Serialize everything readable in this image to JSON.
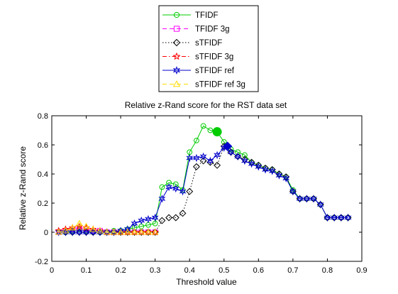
{
  "chart_data": {
    "type": "line",
    "title": "Relative z-Rand score for the RST data set",
    "xlabel": "Threshold value",
    "ylabel": "Relative z-Rand score",
    "xlim": [
      0,
      0.9
    ],
    "ylim": [
      -0.2,
      0.8
    ],
    "xticks": [
      "0",
      "0.1",
      "0.2",
      "0.3",
      "0.4",
      "0.5",
      "0.6",
      "0.7",
      "0.8",
      "0.9"
    ],
    "yticks": [
      "-0.2",
      "0",
      "0.2",
      "0.4",
      "0.6",
      "0.8"
    ],
    "legend_position": "top-center, outside plot",
    "grid": false,
    "series": [
      {
        "name": "TFIDF",
        "color": "#00cc00",
        "line_style": "solid",
        "marker": "circle",
        "x": [
          0.02,
          0.04,
          0.06,
          0.08,
          0.1,
          0.12,
          0.14,
          0.16,
          0.18,
          0.2,
          0.22,
          0.24,
          0.26,
          0.28,
          0.3,
          0.32,
          0.34,
          0.36,
          0.38,
          0.4,
          0.42,
          0.44,
          0.46,
          0.48,
          0.5,
          0.52,
          0.54,
          0.56,
          0.58,
          0.6,
          0.62,
          0.64,
          0.66,
          0.68,
          0.7,
          0.72,
          0.74,
          0.76,
          0.78,
          0.8,
          0.82,
          0.84,
          0.86
        ],
        "y": [
          0.0,
          0.0,
          0.01,
          0.02,
          0.01,
          0.0,
          0.0,
          0.0,
          0.01,
          0.01,
          0.02,
          0.03,
          0.04,
          0.05,
          0.06,
          0.31,
          0.34,
          0.33,
          0.29,
          0.55,
          0.63,
          0.73,
          0.7,
          0.69,
          0.62,
          0.57,
          0.55,
          0.53,
          0.48,
          0.46,
          0.44,
          0.43,
          0.4,
          0.38,
          0.29,
          0.23,
          0.23,
          0.23,
          0.19,
          0.1,
          0.1,
          0.1,
          0.1
        ],
        "highlight": {
          "x": 0.48,
          "y": 0.69
        }
      },
      {
        "name": "TFIDF 3g",
        "color": "#ff00ff",
        "line_style": "dashed",
        "marker": "square",
        "x": [
          0.02,
          0.04,
          0.06,
          0.08,
          0.1,
          0.12,
          0.14,
          0.16,
          0.18,
          0.2,
          0.22,
          0.24,
          0.26,
          0.28,
          0.3
        ],
        "y": [
          0.0,
          0.01,
          0.02,
          0.03,
          0.02,
          0.01,
          0.01,
          0.0,
          0.0,
          0.0,
          0.0,
          0.0,
          0.0,
          0.0,
          0.0
        ]
      },
      {
        "name": "sTFIDF",
        "color": "#000000",
        "line_style": "dotted",
        "marker": "diamond",
        "x": [
          0.04,
          0.06,
          0.08,
          0.1,
          0.12,
          0.14,
          0.16,
          0.18,
          0.2,
          0.22,
          0.24,
          0.26,
          0.28,
          0.3,
          0.32,
          0.34,
          0.36,
          0.38,
          0.4,
          0.42,
          0.44,
          0.46,
          0.48,
          0.5,
          0.52,
          0.54,
          0.56,
          0.58,
          0.6,
          0.62,
          0.64,
          0.66,
          0.68,
          0.7,
          0.72,
          0.74,
          0.76,
          0.78,
          0.8,
          0.82,
          0.84,
          0.86
        ],
        "y": [
          0.0,
          0.0,
          0.0,
          0.0,
          0.0,
          0.0,
          0.0,
          0.0,
          0.0,
          0.0,
          0.0,
          0.0,
          0.0,
          0.0,
          0.08,
          0.1,
          0.1,
          0.13,
          0.28,
          0.45,
          0.49,
          0.48,
          0.46,
          0.59,
          0.55,
          0.52,
          0.5,
          0.48,
          0.46,
          0.44,
          0.43,
          0.4,
          0.38,
          0.28,
          0.23,
          0.23,
          0.23,
          0.19,
          0.1,
          0.1,
          0.1,
          0.1
        ]
      },
      {
        "name": "sTFIDF 3g",
        "color": "#ff0000",
        "line_style": "dash-dot",
        "marker": "star",
        "x": [
          0.02,
          0.04,
          0.06,
          0.08,
          0.1,
          0.12,
          0.14,
          0.16,
          0.18,
          0.2,
          0.22,
          0.24,
          0.26,
          0.28,
          0.3
        ],
        "y": [
          0.01,
          0.02,
          0.03,
          0.04,
          0.03,
          0.02,
          0.01,
          0.0,
          0.0,
          0.0,
          0.0,
          0.0,
          0.0,
          0.0,
          0.0
        ]
      },
      {
        "name": "sTFIDF ref",
        "color": "#0000cc",
        "line_style": "solid",
        "marker": "hexagram",
        "x": [
          0.02,
          0.04,
          0.06,
          0.08,
          0.1,
          0.12,
          0.14,
          0.16,
          0.18,
          0.2,
          0.22,
          0.24,
          0.26,
          0.28,
          0.3,
          0.32,
          0.34,
          0.36,
          0.38,
          0.4,
          0.42,
          0.44,
          0.46,
          0.48,
          0.5,
          0.52,
          0.54,
          0.56,
          0.58,
          0.6,
          0.62,
          0.64,
          0.66,
          0.68,
          0.7,
          0.72,
          0.74,
          0.76,
          0.78,
          0.8,
          0.82,
          0.84,
          0.86
        ],
        "y": [
          0.0,
          0.0,
          0.0,
          0.0,
          0.0,
          0.0,
          0.0,
          0.0,
          0.0,
          0.01,
          0.02,
          0.06,
          0.08,
          0.09,
          0.1,
          0.23,
          0.31,
          0.3,
          0.28,
          0.51,
          0.51,
          0.52,
          0.49,
          0.53,
          0.58,
          0.55,
          0.52,
          0.49,
          0.47,
          0.45,
          0.43,
          0.42,
          0.39,
          0.37,
          0.28,
          0.23,
          0.23,
          0.23,
          0.19,
          0.1,
          0.1,
          0.1,
          0.1
        ],
        "highlight": {
          "x": 0.51,
          "y": 0.59
        }
      },
      {
        "name": "sTFIDF ref 3g",
        "color": "#ffdd00",
        "line_style": "dashed",
        "marker": "triangle",
        "x": [
          0.02,
          0.04,
          0.06,
          0.08,
          0.1,
          0.12,
          0.14,
          0.16,
          0.18,
          0.2,
          0.22,
          0.24,
          0.26,
          0.28,
          0.3
        ],
        "y": [
          0.0,
          0.01,
          0.03,
          0.06,
          0.04,
          0.02,
          0.01,
          0.0,
          0.0,
          0.0,
          0.0,
          0.0,
          0.0,
          0.0,
          0.0
        ]
      }
    ]
  }
}
